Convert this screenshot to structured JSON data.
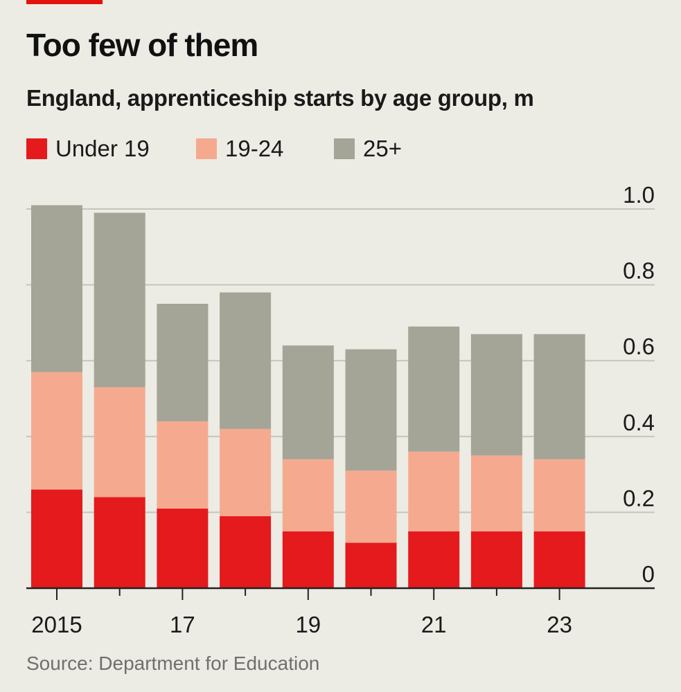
{
  "title": "Too few of them",
  "subtitle": "England, apprenticeship starts by age group, m",
  "source": "Source: Department for Education",
  "colors": {
    "accent": "#e3120b",
    "under19": "#e41a1c",
    "age19_24": "#f5aa90",
    "age25plus": "#a4a497",
    "grid": "#c5c5bd",
    "axis": "#222222",
    "background": "#ecebe4"
  },
  "chart_data": {
    "type": "bar",
    "stacked": true,
    "title": "Too few of them",
    "subtitle": "England, apprenticeship starts by age group, m",
    "categories": [
      "2015",
      "2016",
      "2017",
      "2018",
      "2019",
      "2020",
      "2021",
      "2022",
      "2023"
    ],
    "x_tick_labels": [
      "2015",
      "17",
      "19",
      "21",
      "23"
    ],
    "x_tick_label_positions": [
      0,
      2,
      4,
      6,
      8
    ],
    "y_tick_labels": [
      "0",
      "0.2",
      "0.4",
      "0.6",
      "0.8",
      "1.0"
    ],
    "y_ticks": [
      0,
      0.2,
      0.4,
      0.6,
      0.8,
      1.0
    ],
    "ylim": [
      0,
      1.0
    ],
    "xlabel": "",
    "ylabel": "m",
    "grid": true,
    "legend_position": "top-left",
    "series": [
      {
        "name": "Under 19",
        "color": "#e41a1c",
        "values": [
          0.26,
          0.24,
          0.21,
          0.19,
          0.15,
          0.12,
          0.15,
          0.15,
          0.15
        ]
      },
      {
        "name": "19-24",
        "color": "#f5aa90",
        "values": [
          0.31,
          0.29,
          0.23,
          0.23,
          0.19,
          0.19,
          0.21,
          0.2,
          0.19
        ]
      },
      {
        "name": "25+",
        "color": "#a4a497",
        "values": [
          0.44,
          0.46,
          0.31,
          0.36,
          0.3,
          0.32,
          0.33,
          0.32,
          0.33
        ]
      }
    ]
  }
}
